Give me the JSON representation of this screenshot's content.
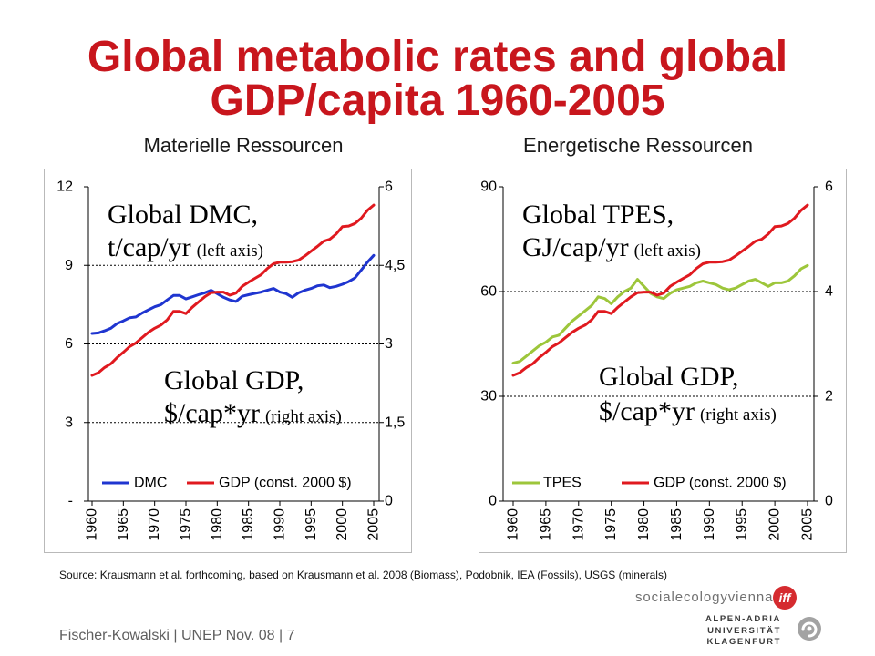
{
  "slide": {
    "title_line1": "Global metabolic rates and global",
    "title_line2": "GDP/capita 1960-2005",
    "title_color": "#c8161d",
    "subtitle_left": "Materielle Ressourcen",
    "subtitle_right": "Energetische Ressourcen",
    "source": "Source: Krausmann et al. forthcoming, based on Krausmann et al. 2008 (Biomass), Podobnik, IEA (Fossils), USGS (minerals)",
    "footer": "Fischer-Kowalski | UNEP Nov. 08 | 7"
  },
  "logos": {
    "sev_wordmark": "socialecologyvienna",
    "sev_badge": "iff",
    "sev_badge_color": "#d52b2f",
    "aau_lines": [
      "ALPEN-ADRIA",
      "UNIVERSITÄT",
      "KLAGENFURT"
    ]
  },
  "chart_data": [
    {
      "type": "line",
      "x": [
        1960,
        1961,
        1962,
        1963,
        1964,
        1965,
        1966,
        1967,
        1968,
        1969,
        1970,
        1971,
        1972,
        1973,
        1974,
        1975,
        1976,
        1977,
        1978,
        1979,
        1980,
        1981,
        1982,
        1983,
        1984,
        1985,
        1986,
        1987,
        1988,
        1989,
        1990,
        1991,
        1992,
        1993,
        1994,
        1995,
        1996,
        1997,
        1998,
        1999,
        2000,
        2001,
        2002,
        2003,
        2004,
        2005
      ],
      "x_ticks": [
        1960,
        1965,
        1970,
        1975,
        1980,
        1985,
        1990,
        1995,
        2000,
        2005
      ],
      "x_tick_labels": [
        "1960",
        "1965",
        "1970",
        "1975",
        "1980",
        "1985",
        "1990",
        "1995",
        "2000",
        "2005"
      ],
      "left_axis": {
        "ylim": [
          0,
          12
        ],
        "ticks": [
          0,
          3,
          6,
          9,
          12
        ],
        "tick_labels": [
          "-",
          "3",
          "6",
          "9",
          "12"
        ]
      },
      "right_axis": {
        "ylim": [
          0,
          6
        ],
        "ticks": [
          0,
          1.5,
          3,
          4.5,
          6
        ],
        "tick_labels": [
          "0",
          "1,5",
          "3",
          "4,5",
          "6"
        ]
      },
      "gridlines": [
        3,
        6,
        9
      ],
      "legend": "bottom",
      "series": [
        {
          "name": "DMC",
          "axis": "left",
          "color": "#1f35d0",
          "values": [
            6.4,
            6.42,
            6.5,
            6.6,
            6.78,
            6.88,
            7.0,
            7.03,
            7.18,
            7.3,
            7.42,
            7.5,
            7.68,
            7.85,
            7.85,
            7.72,
            7.8,
            7.88,
            7.95,
            8.05,
            7.92,
            7.78,
            7.68,
            7.62,
            7.82,
            7.88,
            7.93,
            7.98,
            8.05,
            8.12,
            7.98,
            7.92,
            7.78,
            7.95,
            8.05,
            8.12,
            8.22,
            8.25,
            8.15,
            8.2,
            8.28,
            8.38,
            8.52,
            8.82,
            9.12,
            9.38
          ]
        },
        {
          "name": "GDP (const. 2000 $)",
          "axis": "right",
          "color": "#e0191f",
          "values": [
            2.4,
            2.45,
            2.55,
            2.62,
            2.74,
            2.84,
            2.95,
            3.02,
            3.12,
            3.22,
            3.3,
            3.36,
            3.46,
            3.62,
            3.62,
            3.58,
            3.7,
            3.8,
            3.9,
            3.98,
            3.99,
            3.99,
            3.93,
            3.97,
            4.1,
            4.18,
            4.25,
            4.32,
            4.44,
            4.53,
            4.56,
            4.56,
            4.57,
            4.6,
            4.68,
            4.77,
            4.86,
            4.96,
            5.0,
            5.1,
            5.24,
            5.25,
            5.3,
            5.4,
            5.55,
            5.65
          ]
        }
      ],
      "annotations": [
        {
          "line1": "Global DMC,",
          "line2": "t/cap/yr",
          "axis_note": "(left axis)",
          "color": "#2a44c2"
        },
        {
          "line1": "Global GDP,",
          "line2": "$/cap*yr",
          "axis_note": "(right axis)",
          "color": "#d41a1f"
        }
      ]
    },
    {
      "type": "line",
      "x": [
        1960,
        1961,
        1962,
        1963,
        1964,
        1965,
        1966,
        1967,
        1968,
        1969,
        1970,
        1971,
        1972,
        1973,
        1974,
        1975,
        1976,
        1977,
        1978,
        1979,
        1980,
        1981,
        1982,
        1983,
        1984,
        1985,
        1986,
        1987,
        1988,
        1989,
        1990,
        1991,
        1992,
        1993,
        1994,
        1995,
        1996,
        1997,
        1998,
        1999,
        2000,
        2001,
        2002,
        2003,
        2004,
        2005
      ],
      "x_ticks": [
        1960,
        1965,
        1970,
        1975,
        1980,
        1985,
        1990,
        1995,
        2000,
        2005
      ],
      "x_tick_labels": [
        "1960",
        "1965",
        "1970",
        "1975",
        "1980",
        "1985",
        "1990",
        "1995",
        "2000",
        "2005"
      ],
      "left_axis": {
        "ylim": [
          0,
          90
        ],
        "ticks": [
          0,
          30,
          60,
          90
        ],
        "tick_labels": [
          "0",
          "30",
          "60",
          "90"
        ]
      },
      "right_axis": {
        "ylim": [
          0,
          6
        ],
        "ticks": [
          0,
          2,
          4,
          6
        ],
        "tick_labels": [
          "0",
          "2",
          "4",
          "6"
        ]
      },
      "gridlines": [
        30,
        60
      ],
      "legend": "bottom",
      "series": [
        {
          "name": "TPES",
          "axis": "left",
          "color": "#9dc63b",
          "values": [
            39.5,
            40,
            41.5,
            43,
            44.5,
            45.5,
            47,
            47.5,
            49.5,
            51.5,
            53,
            54.5,
            56,
            58.5,
            58,
            56.5,
            58.5,
            60,
            61,
            63.5,
            61.5,
            59.5,
            58.5,
            58,
            59.5,
            60.5,
            61,
            61.5,
            62.5,
            63,
            62.5,
            62,
            61,
            60.5,
            61,
            62,
            63,
            63.5,
            62.5,
            61.5,
            62.5,
            62.5,
            63,
            64.5,
            66.5,
            67.5
          ]
        },
        {
          "name": "GDP (const. 2000 $)",
          "axis": "right",
          "color": "#e0191f",
          "values": [
            2.4,
            2.45,
            2.55,
            2.62,
            2.74,
            2.84,
            2.95,
            3.02,
            3.12,
            3.22,
            3.3,
            3.36,
            3.46,
            3.62,
            3.62,
            3.58,
            3.7,
            3.8,
            3.9,
            3.98,
            3.99,
            3.99,
            3.93,
            3.97,
            4.1,
            4.18,
            4.25,
            4.32,
            4.44,
            4.53,
            4.56,
            4.56,
            4.57,
            4.6,
            4.68,
            4.77,
            4.86,
            4.96,
            5.0,
            5.1,
            5.24,
            5.25,
            5.3,
            5.4,
            5.55,
            5.65
          ]
        }
      ],
      "annotations": [
        {
          "line1": "Global TPES,",
          "line2": "GJ/cap/yr",
          "axis_note": "(left axis)",
          "color": "#5a8f1f"
        },
        {
          "line1": "Global GDP,",
          "line2": "$/cap*yr",
          "axis_note": "(right axis)",
          "color": "#d41a1f"
        }
      ]
    }
  ]
}
